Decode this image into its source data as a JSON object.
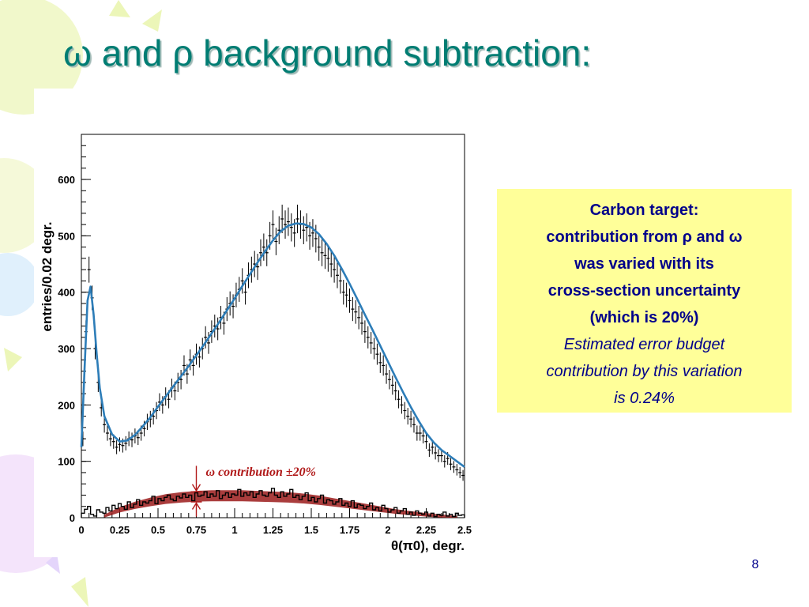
{
  "slide": {
    "title": "ω and ρ background subtraction:",
    "page_number": "8",
    "accent_color": "#007d73",
    "text_color": "#00008b",
    "note_background": "#ffff99"
  },
  "note": {
    "bold_lines": [
      "Carbon target:",
      "contribution from ρ and ω",
      "was varied with its",
      "cross-section uncertainty",
      "(which is 20%)"
    ],
    "italic_lines": [
      "Estimated error budget",
      "contribution by this variation",
      "is 0.24%"
    ]
  },
  "chart_data": {
    "type": "line",
    "title": "",
    "xlabel": "θ(π0), degr.",
    "ylabel": "entries/0.02 degr.",
    "xlim": [
      0,
      2.5
    ],
    "ylim": [
      0,
      680
    ],
    "x_ticks": [
      0,
      0.25,
      0.5,
      0.75,
      1,
      1.25,
      1.5,
      1.75,
      2,
      2.25,
      2.5
    ],
    "x_tick_labels": [
      "0",
      "0.25",
      "0.5",
      "0.75",
      "1",
      "1.25",
      "1.5",
      "1.75",
      "2",
      "2.25",
      "2.5"
    ],
    "y_ticks": [
      0,
      100,
      200,
      300,
      400,
      500,
      600
    ],
    "y_tick_labels": [
      "0",
      "100",
      "200",
      "300",
      "400",
      "500",
      "600"
    ],
    "grid": false,
    "annotation": "ω contribution ±20%",
    "series": [
      {
        "kind": "points_with_errors",
        "color": "#000000",
        "x": [
          0.01,
          0.03,
          0.05,
          0.07,
          0.09,
          0.11,
          0.13,
          0.15,
          0.17,
          0.19,
          0.21,
          0.23,
          0.25,
          0.27,
          0.29,
          0.31,
          0.33,
          0.35,
          0.37,
          0.39,
          0.41,
          0.43,
          0.45,
          0.47,
          0.49,
          0.51,
          0.53,
          0.55,
          0.57,
          0.59,
          0.61,
          0.63,
          0.65,
          0.67,
          0.69,
          0.71,
          0.73,
          0.75,
          0.77,
          0.79,
          0.81,
          0.83,
          0.85,
          0.87,
          0.89,
          0.91,
          0.93,
          0.95,
          0.97,
          0.99,
          1.01,
          1.03,
          1.05,
          1.07,
          1.09,
          1.11,
          1.13,
          1.15,
          1.17,
          1.19,
          1.21,
          1.23,
          1.25,
          1.27,
          1.29,
          1.31,
          1.33,
          1.35,
          1.37,
          1.39,
          1.41,
          1.43,
          1.45,
          1.47,
          1.49,
          1.51,
          1.53,
          1.55,
          1.57,
          1.59,
          1.61,
          1.63,
          1.65,
          1.67,
          1.69,
          1.71,
          1.73,
          1.75,
          1.77,
          1.79,
          1.81,
          1.83,
          1.85,
          1.87,
          1.89,
          1.91,
          1.93,
          1.95,
          1.97,
          1.99,
          2.01,
          2.03,
          2.05,
          2.07,
          2.09,
          2.11,
          2.13,
          2.15,
          2.17,
          2.19,
          2.21,
          2.23,
          2.25,
          2.27,
          2.29,
          2.31,
          2.33,
          2.35,
          2.37,
          2.39,
          2.41,
          2.43,
          2.45,
          2.47,
          2.49
        ],
        "y": [
          140,
          330,
          440,
          390,
          300,
          240,
          195,
          165,
          150,
          140,
          135,
          125,
          130,
          128,
          132,
          140,
          138,
          145,
          142,
          150,
          158,
          170,
          175,
          180,
          190,
          205,
          200,
          215,
          210,
          230,
          225,
          240,
          245,
          270,
          255,
          280,
          270,
          290,
          285,
          300,
          320,
          310,
          330,
          340,
          335,
          355,
          345,
          370,
          380,
          375,
          395,
          405,
          420,
          400,
          430,
          440,
          450,
          445,
          470,
          480,
          470,
          500,
          520,
          490,
          510,
          530,
          520,
          525,
          515,
          505,
          530,
          520,
          510,
          515,
          500,
          505,
          495,
          480,
          470,
          465,
          460,
          450,
          440,
          430,
          420,
          400,
          395,
          385,
          370,
          365,
          355,
          345,
          330,
          320,
          310,
          300,
          290,
          275,
          270,
          255,
          245,
          235,
          225,
          210,
          200,
          190,
          180,
          175,
          165,
          150,
          150,
          145,
          135,
          120,
          125,
          115,
          110,
          110,
          100,
          105,
          95,
          90,
          85,
          80,
          75
        ],
        "yerr": 18
      },
      {
        "kind": "fit_curve",
        "color": "#2d7db8",
        "x": [
          0,
          0.02,
          0.04,
          0.06,
          0.08,
          0.1,
          0.12,
          0.15,
          0.2,
          0.25,
          0.3,
          0.35,
          0.4,
          0.45,
          0.5,
          0.55,
          0.6,
          0.65,
          0.7,
          0.75,
          0.8,
          0.85,
          0.9,
          0.95,
          1,
          1.05,
          1.1,
          1.15,
          1.2,
          1.25,
          1.3,
          1.35,
          1.4,
          1.45,
          1.5,
          1.55,
          1.6,
          1.65,
          1.7,
          1.75,
          1.8,
          1.85,
          1.9,
          1.95,
          2,
          2.05,
          2.1,
          2.15,
          2.2,
          2.25,
          2.3,
          2.35,
          2.4,
          2.45,
          2.5
        ],
        "y": [
          125,
          260,
          385,
          410,
          360,
          290,
          230,
          180,
          148,
          135,
          137,
          147,
          162,
          178,
          197,
          215,
          233,
          251,
          269,
          288,
          307,
          327,
          347,
          368,
          389,
          411,
          432,
          453,
          473,
          492,
          508,
          518,
          522,
          521,
          515,
          503,
          486,
          465,
          441,
          415,
          388,
          360,
          333,
          305,
          277,
          249,
          222,
          196,
          172,
          150,
          133,
          120,
          110,
          100,
          90
        ]
      },
      {
        "kind": "histogram",
        "name": "ω contribution",
        "color": "#000000",
        "x": [
          0.01,
          0.03,
          0.05,
          0.07,
          0.09,
          0.11,
          0.13,
          0.15,
          0.17,
          0.19,
          0.21,
          0.23,
          0.25,
          0.27,
          0.29,
          0.31,
          0.33,
          0.35,
          0.37,
          0.39,
          0.41,
          0.43,
          0.45,
          0.47,
          0.49,
          0.51,
          0.53,
          0.55,
          0.57,
          0.59,
          0.61,
          0.63,
          0.65,
          0.67,
          0.69,
          0.71,
          0.73,
          0.75,
          0.77,
          0.79,
          0.81,
          0.83,
          0.85,
          0.87,
          0.89,
          0.91,
          0.93,
          0.95,
          0.97,
          0.99,
          1.01,
          1.03,
          1.05,
          1.07,
          1.09,
          1.11,
          1.13,
          1.15,
          1.17,
          1.19,
          1.21,
          1.23,
          1.25,
          1.27,
          1.29,
          1.31,
          1.33,
          1.35,
          1.37,
          1.39,
          1.41,
          1.43,
          1.45,
          1.47,
          1.49,
          1.51,
          1.53,
          1.55,
          1.57,
          1.59,
          1.61,
          1.63,
          1.65,
          1.67,
          1.69,
          1.71,
          1.73,
          1.75,
          1.77,
          1.79,
          1.81,
          1.83,
          1.85,
          1.87,
          1.89,
          1.91,
          1.93,
          1.95,
          1.97,
          1.99,
          2.01,
          2.03,
          2.05,
          2.07,
          2.09,
          2.11,
          2.13,
          2.15,
          2.17,
          2.19,
          2.21,
          2.23,
          2.25,
          2.27,
          2.29,
          2.31,
          2.33,
          2.35,
          2.37,
          2.39,
          2.41,
          2.43,
          2.45,
          2.47,
          2.49
        ],
        "y": [
          8,
          15,
          20,
          6,
          3,
          14,
          10,
          8,
          18,
          12,
          22,
          16,
          25,
          20,
          15,
          28,
          18,
          24,
          32,
          22,
          28,
          26,
          30,
          38,
          25,
          34,
          30,
          36,
          40,
          33,
          30,
          38,
          35,
          42,
          36,
          40,
          30,
          44,
          38,
          40,
          46,
          36,
          42,
          38,
          48,
          34,
          40,
          44,
          36,
          42,
          40,
          50,
          38,
          44,
          40,
          46,
          36,
          42,
          48,
          40,
          38,
          44,
          52,
          40,
          36,
          46,
          38,
          42,
          50,
          36,
          40,
          32,
          38,
          44,
          30,
          36,
          28,
          34,
          40,
          26,
          32,
          30,
          24,
          28,
          34,
          22,
          26,
          20,
          30,
          18,
          24,
          22,
          16,
          20,
          26,
          14,
          18,
          12,
          22,
          16,
          10,
          14,
          18,
          8,
          12,
          16,
          6,
          10,
          4,
          12,
          8,
          6,
          10,
          3,
          8,
          2,
          6,
          4,
          10,
          3,
          6,
          2,
          8,
          4,
          5
        ]
      },
      {
        "kind": "band",
        "name": "ω contribution ±20%",
        "color": "#9b1b1b",
        "x": [
          0.15,
          0.25,
          0.35,
          0.45,
          0.55,
          0.65,
          0.75,
          0.85,
          0.95,
          1.05,
          1.15,
          1.25,
          1.35,
          1.45,
          1.55,
          1.65,
          1.75,
          1.85,
          1.95,
          2.05,
          2.15,
          2.25,
          2.35,
          2.45
        ],
        "y": [
          3,
          14,
          22,
          28,
          33,
          36,
          38,
          39,
          39,
          39,
          38,
          37,
          36,
          34,
          31,
          27,
          23,
          19,
          15,
          11,
          8,
          5,
          3,
          1
        ],
        "uncertainty_fraction": 0.2
      }
    ]
  }
}
